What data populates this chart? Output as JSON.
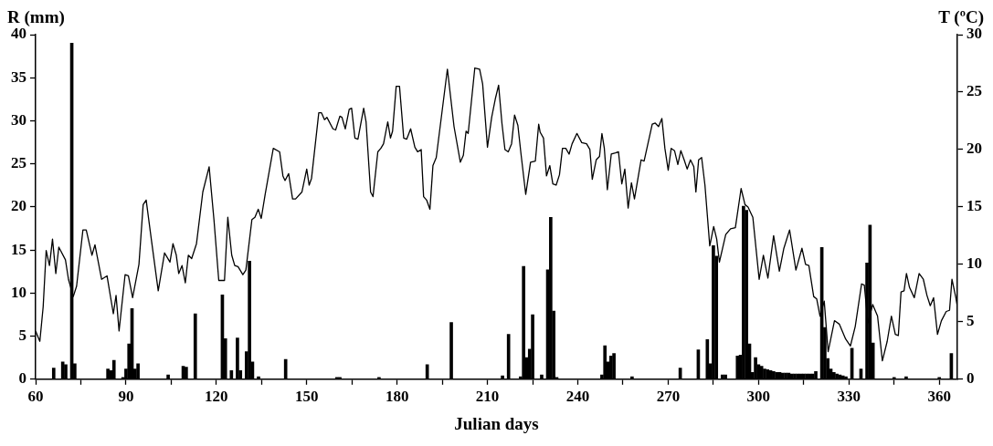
{
  "chart_data": {
    "type": "bar",
    "xlabel": "Julian days",
    "ylabel": "R (mm)",
    "y2label": "T (ºC)",
    "xlim": [
      60,
      366
    ],
    "xticks": [
      60,
      {
        "value": 75,
        "label": null
      },
      90,
      {
        "value": 105,
        "label": null
      },
      120,
      {
        "value": 135,
        "label": null
      },
      150,
      {
        "value": 165,
        "label": null
      },
      180,
      {
        "value": 195,
        "label": null
      },
      210,
      {
        "value": 225,
        "label": null
      },
      240,
      {
        "value": 255,
        "label": null
      },
      270,
      {
        "value": 285,
        "label": null
      },
      300,
      {
        "value": 315,
        "label": null
      },
      330,
      {
        "value": 345,
        "label": null
      },
      360
    ],
    "ylim": [
      0,
      40
    ],
    "yticks": [
      0,
      5,
      10,
      15,
      20,
      25,
      30,
      35,
      40
    ],
    "y2lim": [
      0,
      30
    ],
    "y2ticks": [
      0,
      5,
      10,
      15,
      20,
      25,
      30
    ],
    "grid": false,
    "legend": false,
    "marker": "none",
    "line_style": "solid",
    "series": [
      {
        "color": "#000000",
        "x": [
          66,
          69,
          70,
          72,
          73,
          84,
          85,
          86,
          89,
          90,
          91,
          92,
          93,
          94,
          104,
          109,
          110,
          113,
          122,
          123,
          125,
          127,
          128,
          130,
          131,
          132,
          134,
          143,
          160,
          161,
          174,
          190,
          198,
          215,
          217,
          221,
          222,
          223,
          224,
          225,
          228,
          230,
          231,
          232,
          233,
          248,
          249,
          250,
          251,
          252,
          258,
          274,
          280,
          283,
          284,
          285,
          286,
          288,
          289,
          293,
          294,
          295,
          296,
          297,
          298,
          299,
          300,
          301,
          302,
          303,
          304,
          305,
          306,
          307,
          308,
          309,
          310,
          311,
          312,
          313,
          314,
          315,
          316,
          317,
          318,
          319,
          321,
          322,
          323,
          324,
          325,
          326,
          327,
          328,
          329,
          331,
          334,
          336,
          337,
          338,
          345,
          349,
          360,
          364
        ],
        "values": [
          1.3,
          2.0,
          1.7,
          39,
          1.8,
          1.2,
          1.0,
          2.2,
          0.2,
          1.2,
          4.1,
          8.2,
          1.2,
          1.8,
          0.5,
          1.5,
          1.4,
          7.6,
          9.8,
          4.7,
          1.0,
          4.8,
          1.0,
          3.2,
          13.7,
          2.0,
          0.3,
          2.3,
          0.2,
          0.2,
          0.2,
          1.7,
          6.6,
          0.4,
          5.2,
          0.3,
          13.1,
          2.5,
          3.5,
          7.5,
          0.5,
          12.7,
          18.8,
          7.9,
          0.2,
          0.5,
          3.9,
          2.0,
          2.7,
          3.0,
          0.3,
          1.3,
          3.4,
          4.6,
          1.8,
          15.5,
          14.3,
          0.5,
          0.5,
          2.7,
          2.8,
          20.1,
          19.6,
          4.1,
          0.8,
          2.5,
          1.7,
          1.5,
          1.2,
          1.1,
          1.0,
          0.9,
          0.8,
          0.8,
          0.7,
          0.7,
          0.7,
          0.6,
          0.6,
          0.6,
          0.6,
          0.6,
          0.6,
          0.6,
          0.6,
          0.9,
          15.3,
          6.0,
          2.4,
          1.2,
          0.8,
          0.6,
          0.5,
          0.4,
          0.3,
          3.6,
          1.2,
          13.5,
          17.9,
          4.2,
          0.2,
          0.3,
          0.2,
          3.0
        ]
      },
      {
        "type": "line",
        "axis": "y2",
        "color": "#000000",
        "x": [
          60,
          61.4,
          62.5,
          63.5,
          64.6,
          65.6,
          66.7,
          67.7,
          69.9,
          70.9,
          72.5,
          73.6,
          75.7,
          76.8,
          78.7,
          79.7,
          81.9,
          83.7,
          85.8,
          86.7,
          87.7,
          89.7,
          90.8,
          92.2,
          94.3,
          95.7,
          96.7,
          98.5,
          100.7,
          102.8,
          104.6,
          105.6,
          106.7,
          107.5,
          108.6,
          109.7,
          110.7,
          111.8,
          113.4,
          115.5,
          117.6,
          119.2,
          120.8,
          122.7,
          123.8,
          125.1,
          126.1,
          127.2,
          128.8,
          129.8,
          131.8,
          132.8,
          133.9,
          134.9,
          136.2,
          138.9,
          141.0,
          142.1,
          142.8,
          144.0,
          145.3,
          146.3,
          148.4,
          150.0,
          150.8,
          151.6,
          154.0,
          154.9,
          155.9,
          156.7,
          158.7,
          159.6,
          161.0,
          161.7,
          162.8,
          164.1,
          164.9,
          166.0,
          167.0,
          168.9,
          169.7,
          171.2,
          172.0,
          173.6,
          174.6,
          175.5,
          176.9,
          177.8,
          178.5,
          179.7,
          180.8,
          182.2,
          183.2,
          184.5,
          185.9,
          186.8,
          188.0,
          188.8,
          189.8,
          190.9,
          191.9,
          193.0,
          196.7,
          198.9,
          201.0,
          202.0,
          202.9,
          203.6,
          205.8,
          207.4,
          208.4,
          210.0,
          211.4,
          212.6,
          213.7,
          214.8,
          215.8,
          216.9,
          218.0,
          219.0,
          220.1,
          221.1,
          222.7,
          224.3,
          225.9,
          227.0,
          227.5,
          228.6,
          229.6,
          230.7,
          231.7,
          232.8,
          233.9,
          234.9,
          236.0,
          237.1,
          238.1,
          239.7,
          241.3,
          242.9,
          244.0,
          244.8,
          246.1,
          247.2,
          248.0,
          248.8,
          249.8,
          251.1,
          252.5,
          253.5,
          254.6,
          255.6,
          256.7,
          257.8,
          258.8,
          261.0,
          262.0,
          264.7,
          265.7,
          266.8,
          267.9,
          268.9,
          270.0,
          271.0,
          272.1,
          273.2,
          274.2,
          275.3,
          276.3,
          277.4,
          278.5,
          279.2,
          280.1,
          281.1,
          282.2,
          283.8,
          285.1,
          286.1,
          287.0,
          289.1,
          290.7,
          292.3,
          294.2,
          295.5,
          296.5,
          298.1,
          300.2,
          301.6,
          303.1,
          305.0,
          306.9,
          308.4,
          310.3,
          312.4,
          314.4,
          315.6,
          316.7,
          318.3,
          319.3,
          320.4,
          321.8,
          323.1,
          325.2,
          326.8,
          328.9,
          330.5,
          332.1,
          334.2,
          335.1,
          336.3,
          337.9,
          339.5,
          341.1,
          342.7,
          344.1,
          345.4,
          346.4,
          347.3,
          348.3,
          349.1,
          350.1,
          351.7,
          353.3,
          354.7,
          355.9,
          357.0,
          358.1,
          359.4,
          360.7,
          362.3,
          363.4,
          364.2,
          365.5,
          366
        ],
        "values": [
          4.2,
          3.3,
          6.3,
          11.2,
          9.9,
          12.2,
          9.2,
          11.5,
          10.4,
          8.7,
          7.2,
          8.1,
          13.0,
          13.0,
          10.8,
          11.7,
          8.7,
          9.0,
          5.7,
          7.3,
          4.2,
          9.1,
          9.0,
          7.1,
          10.0,
          15.2,
          15.6,
          12.0,
          7.7,
          11.0,
          10.2,
          11.8,
          10.8,
          9.2,
          9.9,
          8.4,
          10.8,
          10.5,
          11.8,
          16.3,
          18.5,
          13.9,
          8.6,
          8.6,
          14.1,
          10.8,
          9.9,
          9.8,
          9.1,
          9.5,
          13.9,
          14.1,
          14.8,
          14.0,
          16.1,
          20.1,
          19.8,
          17.7,
          17.3,
          17.9,
          15.7,
          15.7,
          16.3,
          18.3,
          16.9,
          17.5,
          23.2,
          23.2,
          22.6,
          22.8,
          21.8,
          21.7,
          22.9,
          22.8,
          21.8,
          23.5,
          23.6,
          21.0,
          20.9,
          23.6,
          22.4,
          16.3,
          15.9,
          19.8,
          20.1,
          20.5,
          22.4,
          21.0,
          21.6,
          25.5,
          25.5,
          21.0,
          20.9,
          21.8,
          20.2,
          19.8,
          20.0,
          15.9,
          15.6,
          14.8,
          18.6,
          19.3,
          27.0,
          22.0,
          18.9,
          19.5,
          21.6,
          21.4,
          27.1,
          27.0,
          25.7,
          20.2,
          22.8,
          24.4,
          25.6,
          22.3,
          20.0,
          19.8,
          20.5,
          23.0,
          22.1,
          19.7,
          16.1,
          18.9,
          19.0,
          22.2,
          21.5,
          21.0,
          17.7,
          18.6,
          17.0,
          16.9,
          17.8,
          20.1,
          20.1,
          19.6,
          20.5,
          21.4,
          20.6,
          20.5,
          20.0,
          17.4,
          19.1,
          19.4,
          21.4,
          20.1,
          16.5,
          19.6,
          19.7,
          19.8,
          17.0,
          18.3,
          14.9,
          17.1,
          15.7,
          19.1,
          19.0,
          22.2,
          22.3,
          22.0,
          22.7,
          20.1,
          18.2,
          20.1,
          19.9,
          18.7,
          19.9,
          19.1,
          18.3,
          19.1,
          18.5,
          16.3,
          19.1,
          19.3,
          16.9,
          11.6,
          13.3,
          12.2,
          10.2,
          12.6,
          13.1,
          13.2,
          16.6,
          15.2,
          15.0,
          14.1,
          8.7,
          10.8,
          8.8,
          12.5,
          9.4,
          11.4,
          13.0,
          9.5,
          11.4,
          10.0,
          9.9,
          7.2,
          7.0,
          5.5,
          6.8,
          2.4,
          5.1,
          4.8,
          3.5,
          2.9,
          4.6,
          8.3,
          8.2,
          4.9,
          6.5,
          5.5,
          1.6,
          3.3,
          5.5,
          3.9,
          3.8,
          7.6,
          7.7,
          9.2,
          8.0,
          7.1,
          9.2,
          8.7,
          7.3,
          6.4,
          7.1,
          3.9,
          5.1,
          5.9,
          6.0,
          8.7,
          7.1,
          6.3
        ]
      }
    ]
  }
}
